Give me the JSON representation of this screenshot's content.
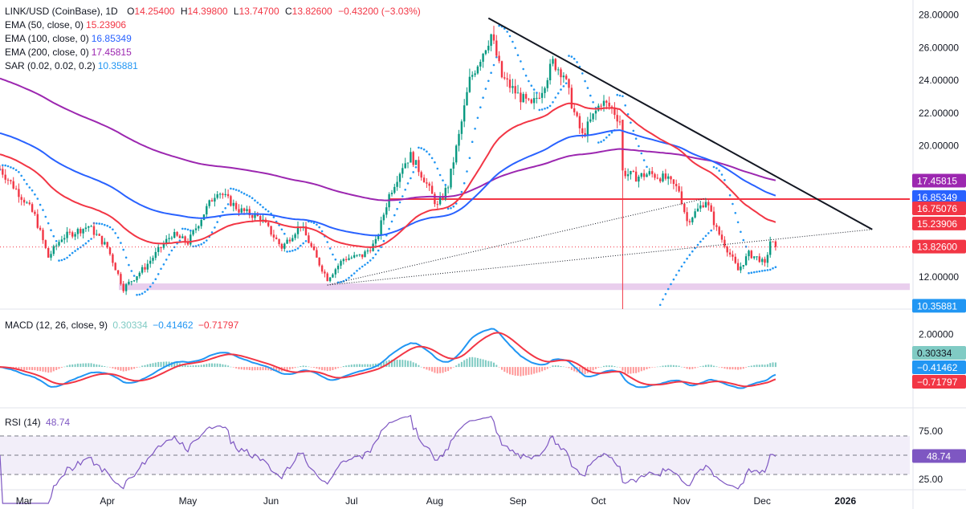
{
  "header": {
    "symbol": "LINK/USD (CoinBase), 1D",
    "open_label": "O",
    "open": "14.25400",
    "high_label": "H",
    "high": "14.39800",
    "low_label": "L",
    "low": "13.74700",
    "close_label": "C",
    "close": "13.82600",
    "change": "−0.43200 (−3.03%)",
    "up_color": "#089981",
    "down_color": "#f23645"
  },
  "indicators": [
    {
      "label": "EMA (50, close, 0)",
      "value": "15.23906",
      "color": "#f23645"
    },
    {
      "label": "EMA (100, close, 0)",
      "value": "16.85349",
      "color": "#2962ff"
    },
    {
      "label": "EMA (200, close, 0)",
      "value": "17.45815",
      "color": "#9c27b0"
    },
    {
      "label": "SAR (0.02, 0.02, 0.2)",
      "value": "10.35881",
      "color": "#2196f3"
    }
  ],
  "macd": {
    "label": "MACD (12, 26, close, 9)",
    "hist": "0.30334",
    "macd": "−0.41462",
    "signal": "−0.71797",
    "hist_color": "#80cbc4",
    "macd_color": "#2196f3",
    "signal_color": "#f23645",
    "axis_tick": "2.00000"
  },
  "rsi": {
    "label": "RSI (14)",
    "value": "48.74",
    "color": "#7e57c2",
    "ticks": [
      "75.00",
      "25.00"
    ]
  },
  "price_ticks": [
    "28.00000",
    "26.00000",
    "24.00000",
    "22.00000",
    "20.00000",
    "16.00000",
    "12.00000"
  ],
  "price_tags": {
    "ema200": "17.45815",
    "ema100": "16.85349",
    "hline": "16.75076",
    "ema50": "15.23906",
    "last": "13.82600",
    "sar": "10.35881"
  },
  "x_ticks": [
    "Mar",
    "Apr",
    "May",
    "Jun",
    "Jul",
    "Aug",
    "Sep",
    "Oct",
    "Nov",
    "Dec",
    "2026"
  ],
  "chart_data": [
    {
      "type": "candlestick",
      "title": "LINK/USD (CoinBase), 1D",
      "ylim": [
        10.0,
        28.6
      ],
      "x_range": [
        "2025-02-20",
        "2026-01-25"
      ],
      "anchors": [
        [
          "2025-02-20",
          18.6
        ],
        [
          "2025-03-01",
          16.7
        ],
        [
          "2025-03-05",
          15.7
        ],
        [
          "2025-03-10",
          13.2
        ],
        [
          "2025-03-15",
          14.4
        ],
        [
          "2025-03-25",
          15.1
        ],
        [
          "2025-04-01",
          13.8
        ],
        [
          "2025-04-07",
          11.3
        ],
        [
          "2025-04-15",
          12.6
        ],
        [
          "2025-04-25",
          14.6
        ],
        [
          "2025-05-01",
          14.1
        ],
        [
          "2025-05-08",
          16.2
        ],
        [
          "2025-05-12",
          17.3
        ],
        [
          "2025-05-20",
          16.1
        ],
        [
          "2025-05-28",
          15.6
        ],
        [
          "2025-06-05",
          13.8
        ],
        [
          "2025-06-12",
          15.2
        ],
        [
          "2025-06-18",
          13.1
        ],
        [
          "2025-06-22",
          11.9
        ],
        [
          "2025-06-28",
          13.1
        ],
        [
          "2025-07-05",
          13.3
        ],
        [
          "2025-07-10",
          14.1
        ],
        [
          "2025-07-15",
          17.0
        ],
        [
          "2025-07-20",
          18.8
        ],
        [
          "2025-07-23",
          19.4
        ],
        [
          "2025-07-28",
          18.0
        ],
        [
          "2025-08-02",
          16.3
        ],
        [
          "2025-08-06",
          17.6
        ],
        [
          "2025-08-10",
          20.6
        ],
        [
          "2025-08-14",
          24.0
        ],
        [
          "2025-08-18",
          25.4
        ],
        [
          "2025-08-22",
          26.8
        ],
        [
          "2025-08-26",
          24.2
        ],
        [
          "2025-09-01",
          23.1
        ],
        [
          "2025-09-06",
          22.4
        ],
        [
          "2025-09-10",
          23.5
        ],
        [
          "2025-09-14",
          25.1
        ],
        [
          "2025-09-18",
          24.4
        ],
        [
          "2025-09-22",
          22.0
        ],
        [
          "2025-09-25",
          20.6
        ],
        [
          "2025-09-28",
          21.5
        ],
        [
          "2025-10-02",
          22.7
        ],
        [
          "2025-10-06",
          22.3
        ],
        [
          "2025-10-09",
          21.5
        ],
        [
          "2025-10-10",
          18.4
        ],
        [
          "2025-10-15",
          18.1
        ],
        [
          "2025-10-20",
          18.3
        ],
        [
          "2025-10-26",
          18.0
        ],
        [
          "2025-10-31",
          17.3
        ],
        [
          "2025-11-03",
          15.4
        ],
        [
          "2025-11-07",
          16.1
        ],
        [
          "2025-11-10",
          16.7
        ],
        [
          "2025-11-14",
          14.9
        ],
        [
          "2025-11-18",
          13.7
        ],
        [
          "2025-11-22",
          12.4
        ],
        [
          "2025-11-26",
          13.4
        ],
        [
          "2025-11-30",
          13.1
        ],
        [
          "2025-12-02",
          12.7
        ],
        [
          "2025-12-04",
          14.2
        ],
        [
          "2025-12-06",
          13.826
        ]
      ],
      "ema50_last": 15.23906,
      "ema100_last": 16.85349,
      "ema200_last": 17.45815,
      "sar_last": 10.35881,
      "horizontal_line": 16.75076,
      "support_zone": [
        11.2,
        11.6
      ],
      "trendline": {
        "from": [
          "2025-08-21",
          27.8
        ],
        "to": [
          "2026-01-11",
          14.9
        ]
      },
      "dotted_lines": [
        {
          "from": [
            "2025-06-22",
            11.5
          ],
          "to": [
            "2026-01-11",
            14.9
          ]
        },
        {
          "from": [
            "2025-06-22",
            11.5
          ],
          "to": [
            "2025-11-10",
            16.8
          ]
        }
      ],
      "last_price": 13.826
    },
    {
      "type": "line",
      "title": "MACD (12, 26, close, 9)",
      "last": {
        "histogram": 0.30334,
        "macd": -0.41462,
        "signal": -0.71797
      }
    },
    {
      "type": "line",
      "title": "RSI (14)",
      "last": 48.74,
      "levels": [
        70,
        50,
        30
      ]
    }
  ]
}
